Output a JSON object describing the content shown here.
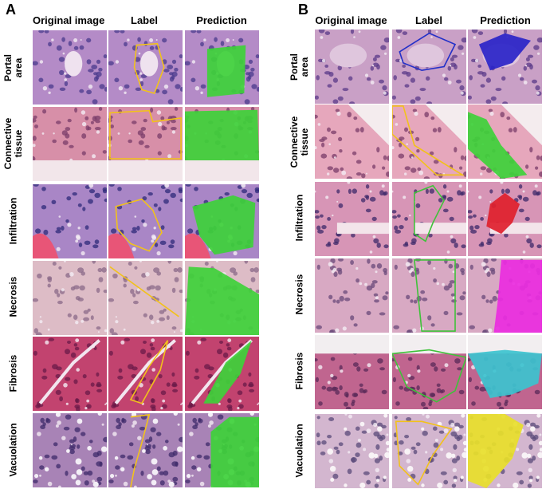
{
  "panels": [
    {
      "letter": "A",
      "columns": [
        "Original image",
        "Label",
        "Prediction"
      ],
      "rows": [
        "Portal\narea",
        "Connective\ntissue",
        "Infiltration",
        "Necrosis",
        "Fibrosis",
        "Vacuolation"
      ]
    },
    {
      "letter": "B",
      "columns": [
        "Original image",
        "Label",
        "Prediction"
      ],
      "rows": [
        "Portal\narea",
        "Connective\ntissue",
        "Infiltration",
        "Necrosis",
        "Fibrosis",
        "Vacuolation"
      ]
    }
  ],
  "colors": {
    "tissue_purple": "#b98bc6",
    "tissue_pink": "#d99aaf",
    "fibrosis_magenta": "#c3416f",
    "label_yellow": "#f2c21a",
    "label_blue": "#2330c8",
    "label_green": "#3fc23a",
    "pred_green": "#3ed13a",
    "pred_blue": "#2a24c8",
    "pred_red": "#e0202c",
    "pred_magenta": "#ea2ce0",
    "pred_cyan": "#3cc3cf",
    "pred_yellow": "#e8e02a"
  }
}
